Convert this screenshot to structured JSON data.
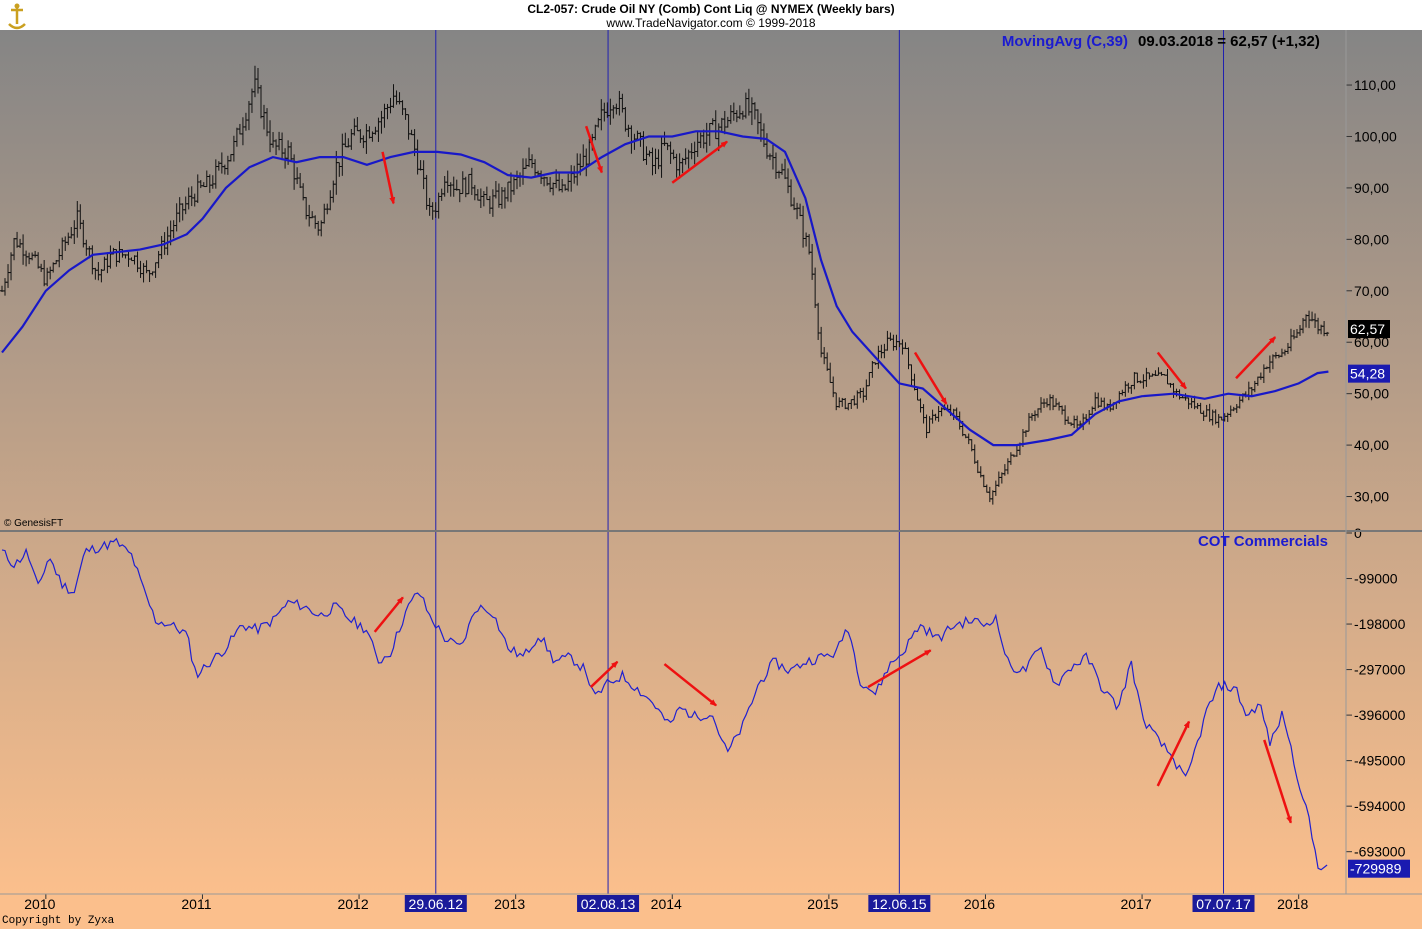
{
  "header": {
    "title": "CL2-057:  Crude Oil NY (Comb) Cont Liq @ NYMEX  (Weekly bars)",
    "subtitle": "www.TradeNavigator.com © 1999-2018"
  },
  "watermark_genesis": "© GenesisFT",
  "copyright": "Copyright by Zyxa",
  "colors": {
    "background_top": "#858585",
    "background_bottom": "#fbbf8c",
    "bars": "#111111",
    "moving_average": "#1818c8",
    "cot_line": "#2020d0",
    "vertical_markers": "#2020b0",
    "arrows": "#ee1111",
    "label_blue": "#1b1bd0",
    "panel_divider": "#777777"
  },
  "chart_data": [
    {
      "type": "ohlc",
      "title": "Crude Oil NY (Comb) Cont Liq weekly bars",
      "indicator_label": "MovingAvg (C,39)",
      "indicator_value_text": "09.03.2018 = 62,57 (+1,32)",
      "y_ticks": [
        "110,00",
        "100,00",
        "90,00",
        "80,00",
        "70,00",
        "60,00",
        "50,00",
        "40,00",
        "30,00"
      ],
      "ylim": [
        23.3,
        120.7
      ],
      "last_price_label": "62,57",
      "ma_value_label": "54,28",
      "price_path": [
        [
          2009.72,
          70
        ],
        [
          2009.8,
          80
        ],
        [
          2009.9,
          77
        ],
        [
          2010.0,
          72
        ],
        [
          2010.1,
          78
        ],
        [
          2010.2,
          84
        ],
        [
          2010.33,
          73
        ],
        [
          2010.42,
          77
        ],
        [
          2010.55,
          77
        ],
        [
          2010.65,
          73
        ],
        [
          2010.75,
          79
        ],
        [
          2010.85,
          85
        ],
        [
          2010.95,
          89
        ],
        [
          2011.05,
          91
        ],
        [
          2011.2,
          98
        ],
        [
          2011.33,
          110
        ],
        [
          2011.45,
          98
        ],
        [
          2011.55,
          97
        ],
        [
          2011.65,
          86
        ],
        [
          2011.75,
          82
        ],
        [
          2011.85,
          94
        ],
        [
          2011.95,
          100
        ],
        [
          2012.05,
          101
        ],
        [
          2012.15,
          104
        ],
        [
          2012.22,
          108
        ],
        [
          2012.3,
          103
        ],
        [
          2012.37,
          96
        ],
        [
          2012.45,
          85
        ],
        [
          2012.5,
          87
        ],
        [
          2012.55,
          93
        ],
        [
          2012.62,
          90
        ],
        [
          2012.72,
          91
        ],
        [
          2012.8,
          87
        ],
        [
          2012.9,
          88
        ],
        [
          2013.0,
          91
        ],
        [
          2013.1,
          95
        ],
        [
          2013.2,
          92
        ],
        [
          2013.3,
          89
        ],
        [
          2013.4,
          94
        ],
        [
          2013.47,
          97
        ],
        [
          2013.55,
          104
        ],
        [
          2013.63,
          108
        ],
        [
          2013.7,
          103
        ],
        [
          2013.8,
          98
        ],
        [
          2013.88,
          94
        ],
        [
          2013.95,
          98
        ],
        [
          2014.05,
          94
        ],
        [
          2014.15,
          99
        ],
        [
          2014.25,
          101
        ],
        [
          2014.35,
          103
        ],
        [
          2014.45,
          106
        ],
        [
          2014.52,
          104
        ],
        [
          2014.6,
          98
        ],
        [
          2014.7,
          93
        ],
        [
          2014.8,
          85
        ],
        [
          2014.88,
          77
        ],
        [
          2014.95,
          58
        ],
        [
          2015.05,
          48
        ],
        [
          2015.12,
          48
        ],
        [
          2015.22,
          50
        ],
        [
          2015.3,
          57
        ],
        [
          2015.38,
          60
        ],
        [
          2015.47,
          60
        ],
        [
          2015.55,
          51
        ],
        [
          2015.62,
          43
        ],
        [
          2015.7,
          47
        ],
        [
          2015.8,
          46
        ],
        [
          2015.9,
          40
        ],
        [
          2015.97,
          34
        ],
        [
          2016.03,
          30
        ],
        [
          2016.12,
          35
        ],
        [
          2016.22,
          41
        ],
        [
          2016.3,
          46
        ],
        [
          2016.4,
          49
        ],
        [
          2016.5,
          46
        ],
        [
          2016.6,
          43
        ],
        [
          2016.7,
          49
        ],
        [
          2016.78,
          47
        ],
        [
          2016.88,
          51
        ],
        [
          2016.95,
          53
        ],
        [
          2017.05,
          53
        ],
        [
          2017.15,
          53
        ],
        [
          2017.22,
          50
        ],
        [
          2017.32,
          48
        ],
        [
          2017.42,
          46
        ],
        [
          2017.5,
          45
        ],
        [
          2017.6,
          48
        ],
        [
          2017.7,
          51
        ],
        [
          2017.8,
          56
        ],
        [
          2017.9,
          58
        ],
        [
          2018.0,
          62
        ],
        [
          2018.05,
          66
        ],
        [
          2018.12,
          63
        ],
        [
          2018.19,
          62.57
        ]
      ],
      "moving_average": [
        [
          2009.72,
          58
        ],
        [
          2009.85,
          63
        ],
        [
          2010.0,
          70
        ],
        [
          2010.15,
          74
        ],
        [
          2010.3,
          77
        ],
        [
          2010.45,
          77.5
        ],
        [
          2010.6,
          78
        ],
        [
          2010.75,
          79
        ],
        [
          2010.9,
          81
        ],
        [
          2011.0,
          84
        ],
        [
          2011.15,
          90
        ],
        [
          2011.3,
          94
        ],
        [
          2011.45,
          96
        ],
        [
          2011.6,
          95
        ],
        [
          2011.75,
          96
        ],
        [
          2011.9,
          96
        ],
        [
          2012.05,
          94.5
        ],
        [
          2012.2,
          96
        ],
        [
          2012.35,
          97
        ],
        [
          2012.5,
          97
        ],
        [
          2012.65,
          96.5
        ],
        [
          2012.8,
          95
        ],
        [
          2012.95,
          92.5
        ],
        [
          2013.1,
          92
        ],
        [
          2013.25,
          93
        ],
        [
          2013.4,
          93
        ],
        [
          2013.55,
          96
        ],
        [
          2013.7,
          98.5
        ],
        [
          2013.85,
          100
        ],
        [
          2014.0,
          100
        ],
        [
          2014.15,
          101
        ],
        [
          2014.3,
          101
        ],
        [
          2014.45,
          100
        ],
        [
          2014.6,
          99.5
        ],
        [
          2014.72,
          97
        ],
        [
          2014.85,
          88
        ],
        [
          2014.95,
          76
        ],
        [
          2015.05,
          67
        ],
        [
          2015.15,
          62
        ],
        [
          2015.3,
          57
        ],
        [
          2015.45,
          52
        ],
        [
          2015.6,
          51
        ],
        [
          2015.75,
          47
        ],
        [
          2015.9,
          43
        ],
        [
          2016.05,
          40
        ],
        [
          2016.2,
          40
        ],
        [
          2016.4,
          41
        ],
        [
          2016.55,
          42
        ],
        [
          2016.7,
          46
        ],
        [
          2016.85,
          48.5
        ],
        [
          2017.0,
          49.5
        ],
        [
          2017.2,
          50
        ],
        [
          2017.4,
          49
        ],
        [
          2017.55,
          50
        ],
        [
          2017.7,
          49.5
        ],
        [
          2017.85,
          50.5
        ],
        [
          2018.0,
          52
        ],
        [
          2018.12,
          54
        ],
        [
          2018.19,
          54.28
        ]
      ],
      "arrows": [
        [
          2012.15,
          97,
          2012.22,
          87
        ],
        [
          2013.45,
          102,
          2013.55,
          93
        ],
        [
          2014.0,
          91,
          2014.35,
          99
        ],
        [
          2015.55,
          58,
          2015.75,
          48
        ],
        [
          2017.1,
          58,
          2017.28,
          51
        ],
        [
          2017.6,
          53,
          2017.85,
          61
        ]
      ]
    },
    {
      "type": "line",
      "title": "COT Commercials",
      "y_ticks": [
        "0",
        "-99000",
        "-198000",
        "-297000",
        "-396000",
        "-495000",
        "-594000",
        "-693000"
      ],
      "ylim": [
        -785000,
        0
      ],
      "last_value_label": "-729989",
      "series": [
        [
          2009.72,
          -40000
        ],
        [
          2009.8,
          -70000
        ],
        [
          2009.88,
          -40000
        ],
        [
          2009.95,
          -120000
        ],
        [
          2010.02,
          -50000
        ],
        [
          2010.1,
          -110000
        ],
        [
          2010.18,
          -130000
        ],
        [
          2010.25,
          -40000
        ],
        [
          2010.35,
          -30000
        ],
        [
          2010.45,
          -20000
        ],
        [
          2010.55,
          -50000
        ],
        [
          2010.62,
          -120000
        ],
        [
          2010.7,
          -190000
        ],
        [
          2010.8,
          -200000
        ],
        [
          2010.9,
          -220000
        ],
        [
          2010.96,
          -310000
        ],
        [
          2011.05,
          -280000
        ],
        [
          2011.15,
          -250000
        ],
        [
          2011.25,
          -200000
        ],
        [
          2011.35,
          -210000
        ],
        [
          2011.45,
          -190000
        ],
        [
          2011.55,
          -150000
        ],
        [
          2011.65,
          -160000
        ],
        [
          2011.75,
          -180000
        ],
        [
          2011.85,
          -160000
        ],
        [
          2011.95,
          -190000
        ],
        [
          2012.05,
          -210000
        ],
        [
          2012.12,
          -280000
        ],
        [
          2012.2,
          -260000
        ],
        [
          2012.3,
          -170000
        ],
        [
          2012.38,
          -125000
        ],
        [
          2012.45,
          -180000
        ],
        [
          2012.55,
          -230000
        ],
        [
          2012.65,
          -250000
        ],
        [
          2012.75,
          -160000
        ],
        [
          2012.85,
          -170000
        ],
        [
          2012.95,
          -250000
        ],
        [
          2013.05,
          -270000
        ],
        [
          2013.15,
          -220000
        ],
        [
          2013.25,
          -280000
        ],
        [
          2013.35,
          -270000
        ],
        [
          2013.45,
          -300000
        ],
        [
          2013.5,
          -360000
        ],
        [
          2013.58,
          -330000
        ],
        [
          2013.68,
          -310000
        ],
        [
          2013.78,
          -340000
        ],
        [
          2013.88,
          -370000
        ],
        [
          2013.98,
          -420000
        ],
        [
          2014.05,
          -380000
        ],
        [
          2014.15,
          -400000
        ],
        [
          2014.25,
          -390000
        ],
        [
          2014.35,
          -480000
        ],
        [
          2014.45,
          -420000
        ],
        [
          2014.55,
          -330000
        ],
        [
          2014.65,
          -280000
        ],
        [
          2014.75,
          -300000
        ],
        [
          2014.85,
          -280000
        ],
        [
          2014.95,
          -270000
        ],
        [
          2015.05,
          -260000
        ],
        [
          2015.12,
          -200000
        ],
        [
          2015.2,
          -320000
        ],
        [
          2015.3,
          -350000
        ],
        [
          2015.38,
          -290000
        ],
        [
          2015.47,
          -260000
        ],
        [
          2015.58,
          -200000
        ],
        [
          2015.7,
          -230000
        ],
        [
          2015.8,
          -200000
        ],
        [
          2015.92,
          -190000
        ],
        [
          2016.0,
          -200000
        ],
        [
          2016.06,
          -180000
        ],
        [
          2016.15,
          -290000
        ],
        [
          2016.25,
          -300000
        ],
        [
          2016.35,
          -250000
        ],
        [
          2016.45,
          -330000
        ],
        [
          2016.55,
          -290000
        ],
        [
          2016.65,
          -270000
        ],
        [
          2016.75,
          -340000
        ],
        [
          2016.85,
          -380000
        ],
        [
          2016.93,
          -280000
        ],
        [
          2017.0,
          -400000
        ],
        [
          2017.1,
          -450000
        ],
        [
          2017.2,
          -490000
        ],
        [
          2017.28,
          -540000
        ],
        [
          2017.35,
          -460000
        ],
        [
          2017.42,
          -380000
        ],
        [
          2017.5,
          -330000
        ],
        [
          2017.6,
          -340000
        ],
        [
          2017.67,
          -400000
        ],
        [
          2017.75,
          -370000
        ],
        [
          2017.82,
          -460000
        ],
        [
          2017.9,
          -390000
        ],
        [
          2017.97,
          -500000
        ],
        [
          2018.05,
          -600000
        ],
        [
          2018.12,
          -720000
        ],
        [
          2018.19,
          -729989
        ]
      ],
      "arrows": [
        [
          2012.1,
          -215000,
          2012.28,
          -140000
        ],
        [
          2013.48,
          -335000,
          2013.65,
          -280000
        ],
        [
          2013.95,
          -285000,
          2014.28,
          -375000
        ],
        [
          2015.25,
          -335000,
          2015.65,
          -255000
        ],
        [
          2017.1,
          -550000,
          2017.3,
          -410000
        ],
        [
          2017.78,
          -450000,
          2017.95,
          -630000
        ]
      ]
    }
  ],
  "x_axis": {
    "year_ticks": [
      {
        "label": "2010",
        "value": 2010.0
      },
      {
        "label": "2011",
        "value": 2011.0
      },
      {
        "label": "2012",
        "value": 2012.0
      },
      {
        "label": "2013",
        "value": 2013.0
      },
      {
        "label": "2014",
        "value": 2014.0
      },
      {
        "label": "2015",
        "value": 2015.0
      },
      {
        "label": "2016",
        "value": 2016.0
      },
      {
        "label": "2017",
        "value": 2017.0
      },
      {
        "label": "2018",
        "value": 2018.0
      }
    ],
    "date_markers": [
      {
        "label": "29.06.12",
        "value": 2012.49
      },
      {
        "label": "02.08.13",
        "value": 2013.59
      },
      {
        "label": "12.06.15",
        "value": 2015.45
      },
      {
        "label": "07.07.17",
        "value": 2017.52
      }
    ]
  }
}
